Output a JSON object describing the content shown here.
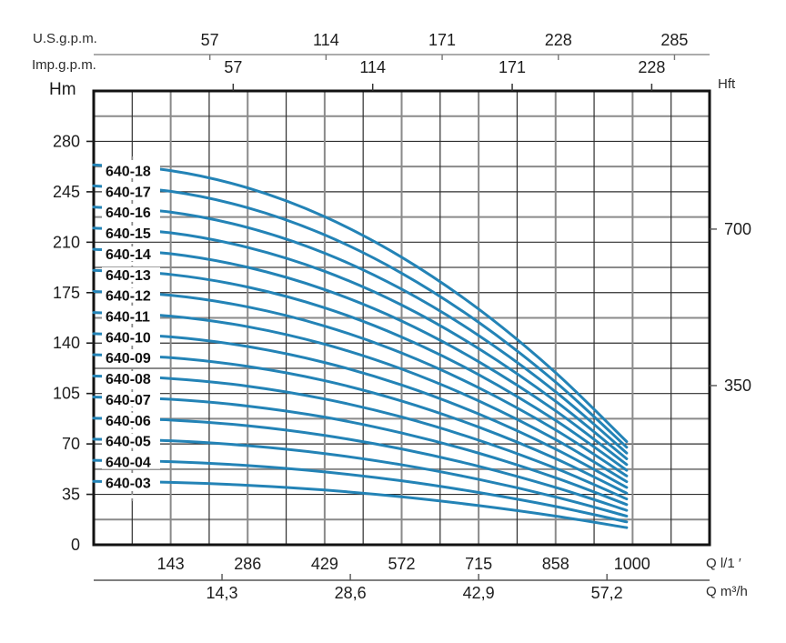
{
  "chart_data": {
    "type": "line",
    "title": "",
    "description": "Multistage pump head-capacity curves, models 640-03 to 640-18",
    "curve_color": "#2383b6",
    "grid": "on",
    "min_flow_q_lpm": 71.5,
    "axes": {
      "top_us": {
        "label": "U.S.g.p.m.",
        "ticks": [
          57,
          114,
          171,
          228,
          285
        ],
        "lpm_per_unit": 3.7854
      },
      "top_imp": {
        "label": "Imp.g.p.m.",
        "ticks": [
          57,
          114,
          171,
          228
        ],
        "lpm_per_unit": 4.5461
      },
      "left": {
        "label": "Hm",
        "ticks": [
          0,
          35,
          70,
          105,
          140,
          175,
          210,
          245,
          280
        ],
        "range": [
          0,
          315
        ]
      },
      "right": {
        "label": "Hft",
        "ticks": [
          {
            "value": 700,
            "head_m": 219.1
          },
          {
            "value": 350,
            "head_m": 110.5
          }
        ]
      },
      "bottom_l": {
        "label": "Q l/1 ′",
        "ticks": [
          143,
          286,
          429,
          572,
          715,
          858,
          1000
        ],
        "range": [
          0,
          1144
        ]
      },
      "bottom_m3": {
        "label": "Q m³/h",
        "ticks": [
          {
            "label": "14,3",
            "m3h": 14.3
          },
          {
            "label": "28,6",
            "m3h": 28.6
          },
          {
            "label": "42,9",
            "m3h": 42.9
          },
          {
            "label": "57,2",
            "m3h": 57.2
          }
        ],
        "lpm_per_unit": 16.667
      }
    },
    "q_lpm": [
      0,
      143,
      286,
      429,
      572,
      715,
      858,
      990
    ],
    "series": [
      {
        "name": "640-18",
        "stages": 18,
        "head_m": [
          263.7,
          259.7,
          247.7,
          227.7,
          199.6,
          163.6,
          119.5,
          71.6
        ]
      },
      {
        "name": "640-17",
        "stages": 17,
        "head_m": [
          249.1,
          245.3,
          233.9,
          215.1,
          188.5,
          154.4,
          112.9,
          67.7
        ]
      },
      {
        "name": "640-16",
        "stages": 16,
        "head_m": [
          234.4,
          230.9,
          220.2,
          202.4,
          177.4,
          145.3,
          106.2,
          63.7
        ]
      },
      {
        "name": "640-15",
        "stages": 15,
        "head_m": [
          219.8,
          216.5,
          206.4,
          189.8,
          166.4,
          136.2,
          99.6,
          59.7
        ]
      },
      {
        "name": "640-14",
        "stages": 14,
        "head_m": [
          205.1,
          202.0,
          192.6,
          177.1,
          155.3,
          127.1,
          93.0,
          55.7
        ]
      },
      {
        "name": "640-13",
        "stages": 13,
        "head_m": [
          190.5,
          187.6,
          178.9,
          164.5,
          144.2,
          118.1,
          86.3,
          51.7
        ]
      },
      {
        "name": "640-12",
        "stages": 12,
        "head_m": [
          175.8,
          173.2,
          165.1,
          151.8,
          133.1,
          109.0,
          79.7,
          47.8
        ]
      },
      {
        "name": "640-11",
        "stages": 11,
        "head_m": [
          161.2,
          158.7,
          151.4,
          139.2,
          122.0,
          99.9,
          73.0,
          43.8
        ]
      },
      {
        "name": "640-10",
        "stages": 10,
        "head_m": [
          146.5,
          144.3,
          137.6,
          126.5,
          110.9,
          90.8,
          66.4,
          39.8
        ]
      },
      {
        "name": "640-09",
        "stages": 9,
        "head_m": [
          131.9,
          129.9,
          123.8,
          113.9,
          99.8,
          81.7,
          59.8,
          35.8
        ]
      },
      {
        "name": "640-08",
        "stages": 8,
        "head_m": [
          117.2,
          115.4,
          110.1,
          101.2,
          88.7,
          72.6,
          53.1,
          31.8
        ]
      },
      {
        "name": "640-07",
        "stages": 7,
        "head_m": [
          102.6,
          101.0,
          96.3,
          88.6,
          77.6,
          63.6,
          46.5,
          27.9
        ]
      },
      {
        "name": "640-06",
        "stages": 6,
        "head_m": [
          87.9,
          86.6,
          82.6,
          75.9,
          66.5,
          54.5,
          39.8,
          23.9
        ]
      },
      {
        "name": "640-05",
        "stages": 5,
        "head_m": [
          73.3,
          72.2,
          68.8,
          63.3,
          55.5,
          45.4,
          33.2,
          19.9
        ]
      },
      {
        "name": "640-04",
        "stages": 4,
        "head_m": [
          58.6,
          57.7,
          55.0,
          50.6,
          44.4,
          36.3,
          26.6,
          15.9
        ]
      },
      {
        "name": "640-03",
        "stages": 3,
        "head_m": [
          44.0,
          43.3,
          41.3,
          38.0,
          33.3,
          27.2,
          19.9,
          11.9
        ]
      }
    ]
  }
}
